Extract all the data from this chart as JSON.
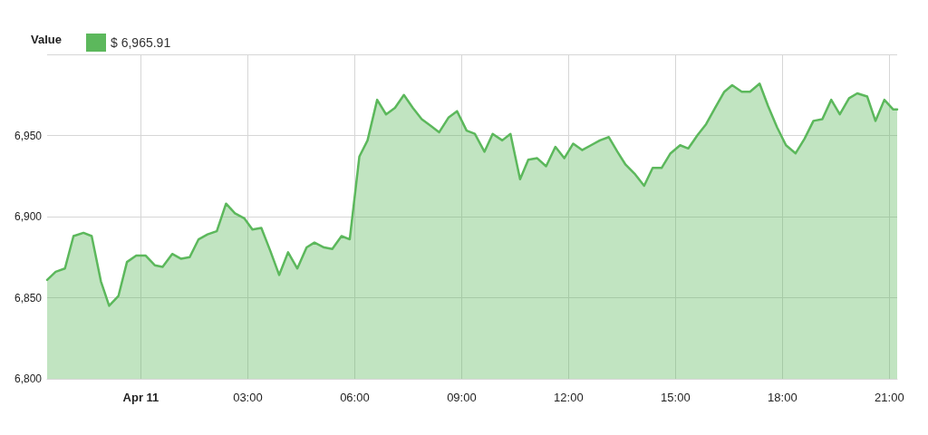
{
  "chart_data": {
    "type": "area",
    "legend_title": "Value",
    "legend": "top left",
    "grid": true,
    "marker": "none",
    "line_style": "solid",
    "x": [
      -2.63,
      -2.39,
      -2.13,
      -1.89,
      -1.61,
      -1.38,
      -1.12,
      -0.89,
      -0.63,
      -0.39,
      -0.13,
      0.13,
      0.39,
      0.61,
      0.88,
      1.13,
      1.37,
      1.62,
      1.87,
      2.13,
      2.39,
      2.64,
      2.9,
      3.13,
      3.38,
      3.63,
      3.88,
      4.13,
      4.39,
      4.65,
      4.87,
      5.14,
      5.37,
      5.63,
      5.86,
      6.13,
      6.36,
      6.63,
      6.88,
      7.13,
      7.38,
      7.63,
      7.88,
      8.13,
      8.37,
      8.63,
      8.87,
      9.14,
      9.37,
      9.64,
      9.87,
      10.14,
      10.37,
      10.64,
      10.87,
      11.12,
      11.37,
      11.63,
      11.88,
      12.13,
      12.38,
      12.63,
      12.88,
      13.13,
      13.37,
      13.6,
      13.87,
      14.12,
      14.36,
      14.61,
      14.86,
      15.13,
      15.36,
      15.61,
      15.86,
      16.11,
      16.37,
      16.59,
      16.86,
      17.09,
      17.36,
      17.6,
      17.85,
      18.1,
      18.37,
      18.62,
      18.87,
      19.12,
      19.37,
      19.61,
      19.87,
      20.1,
      20.38,
      20.61,
      20.86,
      21.11,
      21.22
    ],
    "series": [
      {
        "name": "$ 6,965.91",
        "color": "#5cb85c",
        "values": [
          6861,
          6866,
          6868,
          6888,
          6890,
          6888,
          6860,
          6845,
          6851,
          6872,
          6876,
          6876,
          6870,
          6869,
          6877,
          6874,
          6875,
          6886,
          6889,
          6891,
          6908,
          6902,
          6899,
          6892,
          6893,
          6879,
          6864,
          6878,
          6868,
          6881,
          6884,
          6881,
          6880,
          6888,
          6886,
          6937,
          6947,
          6972,
          6963,
          6967,
          6975,
          6967,
          6960,
          6956,
          6952,
          6961,
          6965,
          6953,
          6951,
          6940,
          6951,
          6947,
          6951,
          6923,
          6935,
          6936,
          6931,
          6943,
          6936,
          6945,
          6941,
          6944,
          6947,
          6949,
          6940,
          6932,
          6926,
          6919,
          6930,
          6930,
          6939,
          6944,
          6942,
          6950,
          6957,
          6967,
          6977,
          6981,
          6977,
          6977,
          6982,
          6968,
          6955,
          6944,
          6939,
          6948,
          6959,
          6960,
          6972,
          6963,
          6973,
          6976,
          6974,
          6959,
          6972,
          6966,
          6966
        ]
      }
    ],
    "xlim": [
      -2.63,
      21.22
    ],
    "xticks": [
      {
        "value": 0,
        "label": "Apr 11"
      },
      {
        "value": 3,
        "label": "03:00"
      },
      {
        "value": 6,
        "label": "06:00"
      },
      {
        "value": 9,
        "label": "09:00"
      },
      {
        "value": 12,
        "label": "12:00"
      },
      {
        "value": 15,
        "label": "15:00"
      },
      {
        "value": 18,
        "label": "18:00"
      },
      {
        "value": 21,
        "label": "21:00"
      }
    ],
    "ylim": [
      6800,
      7000
    ],
    "yticks": [
      {
        "value": 6800,
        "label": "6,800"
      },
      {
        "value": 6850,
        "label": "6,850"
      },
      {
        "value": 6900,
        "label": "6,900"
      },
      {
        "value": 6950,
        "label": "6,950"
      },
      {
        "value": 7000,
        "label": null
      }
    ]
  }
}
